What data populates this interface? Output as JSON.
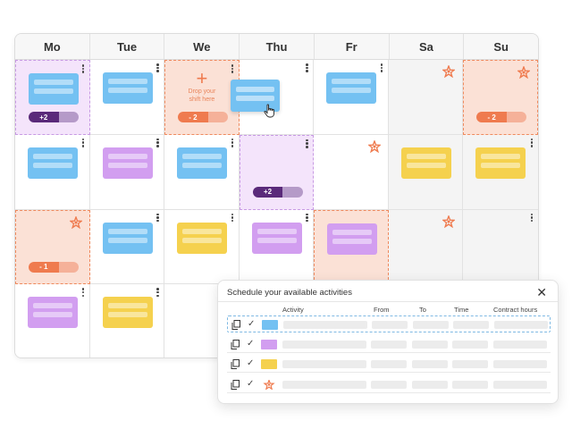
{
  "calendar": {
    "days": [
      "Mo",
      "Tue",
      "We",
      "Thu",
      "Fr",
      "Sa",
      "Su"
    ],
    "badges": {
      "mo_week1": "+2",
      "we_week1": "- 2",
      "su_week1": "- 2",
      "thu_week2": "+2",
      "mo_week3": "- 1"
    },
    "drop_hint": {
      "plus": "+",
      "text_line1": "Drop your",
      "text_line2": "shift here"
    }
  },
  "panel": {
    "title": "Schedule your available activities",
    "close": "✕",
    "columns": {
      "activity": "Activity",
      "from": "From",
      "to": "To",
      "time": "Time",
      "contract_hours": "Contract hours"
    }
  },
  "colors": {
    "blue": "#74c1f2",
    "purple": "#d29ef0",
    "yellow": "#f5d14e",
    "orange": "#ef7b4f",
    "dark_purple": "#5a2a7a"
  },
  "icons": {
    "row_copy": "copy-icon",
    "row_check": "check-icon",
    "weekend_marker": "star-icon",
    "cursor": "hand-cursor-icon"
  }
}
